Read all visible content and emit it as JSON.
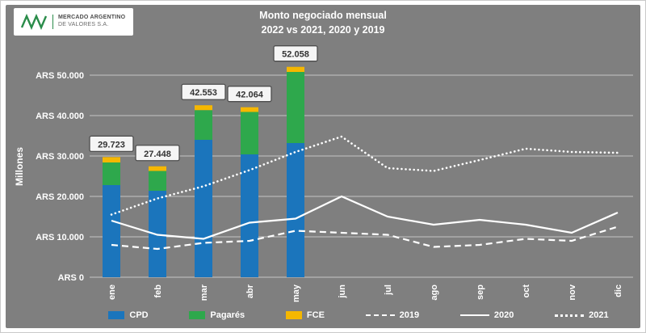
{
  "header": {
    "logo_line1": "MERCADO ARGENTINO",
    "logo_line2": "DE VALORES S.A.",
    "title_line1": "Monto negociado mensual",
    "title_line2": "2022 vs 2021, 2020 y 2019"
  },
  "chart_data": {
    "type": "bar",
    "subtype": "stacked-bars-2022-with-comparison-lines",
    "categories": [
      "ene",
      "feb",
      "mar",
      "abr",
      "may",
      "jun",
      "jul",
      "ago",
      "sep",
      "oct",
      "nov",
      "dic"
    ],
    "ylabel": "Millones",
    "ylim": [
      0,
      56000
    ],
    "grid": true,
    "legend_position": "bottom",
    "yticks": [
      {
        "value": 0,
        "label": "ARS 0"
      },
      {
        "value": 10000,
        "label": "ARS 10.000"
      },
      {
        "value": 20000,
        "label": "ARS 20.000"
      },
      {
        "value": 30000,
        "label": "ARS 30.000"
      },
      {
        "value": 40000,
        "label": "ARS 40.000"
      },
      {
        "value": 50000,
        "label": "ARS 50.000"
      }
    ],
    "bar_series": [
      {
        "name": "CPD",
        "color": "#1b75bc",
        "values": [
          22800,
          21400,
          34000,
          30400,
          33200
        ]
      },
      {
        "name": "Pagarés",
        "color": "#2ea84c",
        "values": [
          5600,
          4900,
          7350,
          10500,
          17600
        ]
      },
      {
        "name": "FCE",
        "color": "#f5b700",
        "values": [
          1323,
          1148,
          1203,
          1164,
          1258
        ]
      }
    ],
    "bar_totals": [
      29723,
      27448,
      42553,
      42064,
      52058
    ],
    "bar_total_labels": [
      "29.723",
      "27.448",
      "42.553",
      "42.064",
      "52.058"
    ],
    "line_series": [
      {
        "name": "2019",
        "style": "dashed",
        "color": "#ffffff",
        "values": [
          8000,
          7000,
          8500,
          9000,
          11500,
          11000,
          10500,
          7500,
          8000,
          9500,
          9000,
          12500
        ]
      },
      {
        "name": "2020",
        "style": "solid",
        "color": "#ffffff",
        "values": [
          14000,
          10500,
          9500,
          13500,
          14500,
          20000,
          15000,
          13000,
          14200,
          13000,
          11000,
          16000
        ]
      },
      {
        "name": "2021",
        "style": "dotted",
        "color": "#ffffff",
        "values": [
          15500,
          19500,
          22500,
          26500,
          31000,
          34800,
          27000,
          26300,
          29000,
          31800,
          31000,
          30800
        ]
      }
    ],
    "colors": {
      "background": "#7f7f7f",
      "grid": "rgba(255,255,255,0.55)",
      "text": "#ffffff",
      "label_box_fill": "#f5f5f5",
      "label_box_border": "#4d4d4d",
      "label_box_text": "#333333"
    }
  }
}
